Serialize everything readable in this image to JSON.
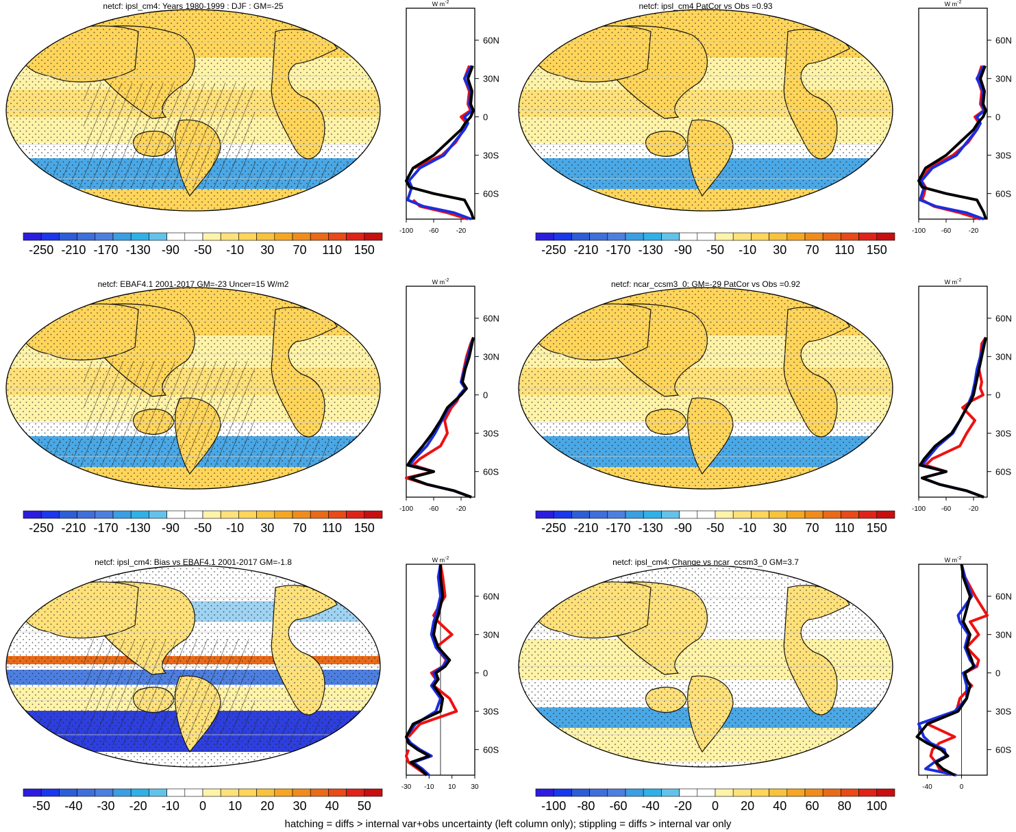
{
  "footer": "hatching = diffs > internal var+obs uncertainty (left column only); stippling = diffs > internal var only",
  "colors": {
    "palette": [
      "#2b1de0",
      "#1a37ec",
      "#2d5ed8",
      "#3f6fdb",
      "#4d7fe0",
      "#3a9fe3",
      "#2fb1e8",
      "#63c2ea",
      "#ffffff",
      "#ffffff",
      "#fff3a8",
      "#ffe17a",
      "#ffd55a",
      "#f7c23c",
      "#f5a623",
      "#f08c1c",
      "#ea6a17",
      "#e84a18",
      "#e02318",
      "#c80f0f"
    ],
    "ocean_fill": "#fff3a8",
    "land_fill": "#ffd55a",
    "southern_band": "#4aa8e6",
    "hatch": "#222222",
    "obs_line": "#000000",
    "model_line": "#1a2de0",
    "other_line": "#ee1111"
  },
  "panels": [
    {
      "title": "netcf: ipsl_cm4: Years 1980-1999 : DJF : GM=-25",
      "colorbar_labels": [
        "-250",
        "-210",
        "-170",
        "-130",
        "-90",
        "-50",
        "-10",
        "30",
        "70",
        "110",
        "150"
      ],
      "profile_unit": "W m",
      "profile_unit_sup": "-2",
      "profile_xticks": [
        "-100",
        "-60",
        "-20"
      ],
      "profile_yticks": [
        "60N",
        "30N",
        "0",
        "30S",
        "60S"
      ],
      "style": "mean"
    },
    {
      "title": "netcf: ipsl_cm4 PatCor vs Obs =0.93",
      "colorbar_labels": [
        "-250",
        "-210",
        "-170",
        "-130",
        "-90",
        "-50",
        "-10",
        "30",
        "70",
        "110",
        "150"
      ],
      "profile_unit": "W m",
      "profile_unit_sup": "-2",
      "profile_xticks": [
        "-100",
        "-60",
        "-20"
      ],
      "profile_yticks": [
        "60N",
        "30N",
        "0",
        "30S",
        "60S"
      ],
      "style": "mean"
    },
    {
      "title": "netcf: EBAF4.1 2001-2017 GM=-23 Uncer=15 W/m2",
      "colorbar_labels": [
        "-250",
        "-210",
        "-170",
        "-130",
        "-90",
        "-50",
        "-10",
        "30",
        "70",
        "110",
        "150"
      ],
      "profile_unit": "W m",
      "profile_unit_sup": "-2",
      "profile_xticks": [
        "-100",
        "-60",
        "-20"
      ],
      "profile_yticks": [
        "60N",
        "30N",
        "0",
        "30S",
        "60S"
      ],
      "style": "mean"
    },
    {
      "title": "netcf: ncar_ccsm3_0: GM=-29 PatCor vs Obs =0.92",
      "colorbar_labels": [
        "-250",
        "-210",
        "-170",
        "-130",
        "-90",
        "-50",
        "-10",
        "30",
        "70",
        "110",
        "150"
      ],
      "profile_unit": "W m",
      "profile_unit_sup": "-2",
      "profile_xticks": [
        "-100",
        "-60",
        "-20"
      ],
      "profile_yticks": [
        "60N",
        "30N",
        "0",
        "30S",
        "60S"
      ],
      "style": "mean"
    },
    {
      "title": "netcf: ipsl_cm4: Bias vs EBAF4.1 2001-2017 GM=-1.8",
      "colorbar_labels": [
        "-50",
        "-40",
        "-30",
        "-20",
        "-10",
        "0",
        "10",
        "20",
        "30",
        "40",
        "50"
      ],
      "profile_unit": "W m",
      "profile_unit_sup": "-2",
      "profile_xticks": [
        "-30",
        "-10",
        "10",
        "30"
      ],
      "profile_yticks": [
        "60N",
        "30N",
        "0",
        "30S",
        "60S"
      ],
      "style": "bias"
    },
    {
      "title": "netcf: ipsl_cm4: Change vs ncar_ccsm3_0 GM=3.7",
      "colorbar_labels": [
        "-100",
        "-80",
        "-60",
        "-40",
        "-20",
        "0",
        "20",
        "40",
        "60",
        "80",
        "100"
      ],
      "profile_unit": "W m",
      "profile_unit_sup": "-2",
      "profile_xticks": [
        "-40",
        "0"
      ],
      "profile_yticks": [
        "60N",
        "30N",
        "0",
        "30S",
        "60S"
      ],
      "style": "change"
    }
  ],
  "chart_data": [
    {
      "type": "heatmap",
      "title": "netcf: ipsl_cm4: Years 1980-1999 : DJF : GM=-25",
      "colorbar_ticks": [
        -250,
        -210,
        -170,
        -130,
        -90,
        -50,
        -10,
        30,
        70,
        110,
        150
      ],
      "profile": {
        "type": "line",
        "lat": [
          85,
          75,
          60,
          45,
          40,
          30,
          20,
          10,
          5,
          0,
          -5,
          -10,
          -20,
          -30,
          -40,
          -50,
          -55,
          -60,
          -65,
          -70,
          -75,
          -80
        ],
        "series": [
          {
            "values": [
              null,
              null,
              null,
              null,
              -8,
              -15,
              -8,
              -10,
              -6,
              -20,
              -12,
              -16,
              -28,
              -48,
              -88,
              null,
              null,
              null,
              -90,
              -80,
              -40,
              -10
            ]
          },
          {
            "values": [
              null,
              null,
              null,
              null,
              -5,
              -15,
              -6,
              -8,
              -4,
              -15,
              -10,
              -15,
              -30,
              -45,
              -80,
              -96,
              -92,
              -95,
              -98,
              -75,
              -30,
              -5
            ]
          },
          {
            "values": [
              null,
              null,
              null,
              null,
              -3,
              -10,
              -4,
              -6,
              -2,
              -6,
              -14,
              -20,
              -40,
              -60,
              -90,
              -100,
              -95,
              -60,
              -15,
              -10,
              -5,
              -2
            ]
          }
        ],
        "xlim": [
          -100,
          0
        ]
      }
    },
    {
      "type": "heatmap",
      "title": "netcf: ipsl_cm4 PatCor vs Obs =0.93",
      "colorbar_ticks": [
        -250,
        -210,
        -170,
        -130,
        -90,
        -50,
        -10,
        30,
        70,
        110,
        150
      ],
      "profile": {
        "type": "line",
        "lat": [
          85,
          75,
          60,
          45,
          40,
          30,
          20,
          10,
          5,
          0,
          -5,
          -10,
          -20,
          -30,
          -40,
          -50,
          -55,
          -60,
          -65,
          -70,
          -75,
          -80
        ],
        "series": [
          {
            "values": [
              null,
              null,
              null,
              null,
              -8,
              -14,
              -8,
              -10,
              -5,
              -18,
              -12,
              -15,
              -28,
              -50,
              -85,
              -96,
              -90,
              -92,
              -95,
              -78,
              -40,
              -10
            ]
          },
          {
            "values": [
              null,
              null,
              null,
              null,
              -5,
              -15,
              -6,
              -8,
              -4,
              -15,
              -10,
              -15,
              -30,
              -45,
              -80,
              -96,
              -92,
              -95,
              -98,
              -75,
              -30,
              -5
            ]
          },
          {
            "values": [
              null,
              null,
              null,
              null,
              -3,
              -10,
              -4,
              -6,
              -2,
              -6,
              -14,
              -20,
              -40,
              -60,
              -90,
              -100,
              -95,
              -60,
              -15,
              -10,
              -5,
              -2
            ]
          }
        ],
        "xlim": [
          -100,
          0
        ]
      }
    },
    {
      "type": "heatmap",
      "title": "netcf: EBAF4.1 2001-2017 GM=-23 Uncer=15 W/m2",
      "colorbar_ticks": [
        -250,
        -210,
        -170,
        -130,
        -90,
        -50,
        -10,
        30,
        70,
        110,
        150
      ],
      "profile": {
        "type": "line",
        "lat": [
          85,
          75,
          60,
          45,
          40,
          30,
          20,
          10,
          5,
          0,
          -5,
          -10,
          -20,
          -30,
          -40,
          -50,
          -55,
          -60,
          -65,
          -70,
          -75,
          -80
        ],
        "series": [
          {
            "values": [
              null,
              null,
              null,
              -2,
              -6,
              -12,
              -16,
              -20,
              -14,
              -22,
              -26,
              -34,
              -44,
              -40,
              -50,
              -80,
              -90,
              -60,
              -100,
              -70,
              -30,
              -5
            ]
          },
          {
            "values": [
              null,
              null,
              null,
              -2,
              -5,
              -10,
              -15,
              -20,
              -14,
              -22,
              -28,
              -38,
              -48,
              -58,
              -70,
              -88,
              -95,
              -60,
              -95,
              -70,
              -30,
              -5
            ]
          },
          {
            "values": [
              null,
              null,
              null,
              -2,
              -4,
              -8,
              -14,
              -18,
              -12,
              -20,
              -30,
              -40,
              -50,
              -62,
              -76,
              -92,
              -98,
              -60,
              -95,
              -70,
              -30,
              -5
            ]
          }
        ],
        "xlim": [
          -100,
          0
        ]
      }
    },
    {
      "type": "heatmap",
      "title": "netcf: ncar_ccsm3_0: GM=-29 PatCor vs Obs =0.92",
      "colorbar_ticks": [
        -250,
        -210,
        -170,
        -130,
        -90,
        -50,
        -10,
        30,
        70,
        110,
        150
      ],
      "profile": {
        "type": "line",
        "lat": [
          85,
          75,
          60,
          45,
          40,
          30,
          20,
          10,
          5,
          0,
          -5,
          -10,
          -20,
          -30,
          -40,
          -50,
          -55,
          -60,
          -65,
          -70,
          -75,
          -80
        ],
        "series": [
          {
            "values": [
              null,
              null,
              null,
              -2,
              -8,
              -10,
              -12,
              -8,
              -10,
              -6,
              -24,
              -36,
              -18,
              -30,
              -40,
              -80,
              -90,
              -60,
              -95,
              -70,
              -30,
              -5
            ]
          },
          {
            "values": [
              null,
              null,
              null,
              -2,
              -5,
              -10,
              -15,
              -18,
              -20,
              -22,
              -26,
              -30,
              -40,
              -50,
              -72,
              -88,
              -95,
              -60,
              -95,
              -70,
              -30,
              -5
            ]
          },
          {
            "values": [
              null,
              null,
              null,
              -2,
              -4,
              -8,
              -12,
              -16,
              -18,
              -20,
              -24,
              -30,
              -40,
              -52,
              -76,
              -92,
              -98,
              -60,
              -95,
              -70,
              -30,
              -5
            ]
          }
        ],
        "xlim": [
          -100,
          0
        ]
      }
    },
    {
      "type": "heatmap",
      "title": "netcf: ipsl_cm4: Bias vs EBAF4.1 2001-2017 GM=-1.8",
      "colorbar_ticks": [
        -50,
        -40,
        -30,
        -20,
        -10,
        0,
        10,
        20,
        30,
        40,
        50
      ],
      "profile": {
        "type": "line",
        "lat": [
          85,
          75,
          60,
          45,
          40,
          30,
          20,
          10,
          5,
          0,
          -5,
          -10,
          -20,
          -30,
          -40,
          -50,
          -55,
          -60,
          -65,
          -70,
          -75,
          -80
        ],
        "series": [
          {
            "values": [
              0,
              2,
              4,
              -6,
              -2,
              10,
              -4,
              5,
              2,
              -8,
              -4,
              -6,
              8,
              14,
              -18,
              -28,
              null,
              -28,
              -30,
              -28,
              -20,
              -12
            ]
          },
          {
            "values": [
              0,
              -2,
              0,
              -4,
              -6,
              -8,
              -4,
              6,
              2,
              -6,
              -4,
              -8,
              0,
              -4,
              -22,
              -30,
              -26,
              -18,
              -8,
              -24,
              -16,
              -10
            ]
          },
          {
            "values": [
              0,
              0,
              2,
              -2,
              -4,
              -6,
              -2,
              8,
              4,
              -4,
              -2,
              -6,
              2,
              0,
              -24,
              -30,
              -28,
              -20,
              -10,
              -26,
              -18,
              -12
            ]
          }
        ],
        "xlim": [
          -30,
          30
        ]
      }
    },
    {
      "type": "heatmap",
      "title": "netcf: ipsl_cm4: Change vs ncar_ccsm3_0 GM=3.7",
      "colorbar_ticks": [
        -100,
        -80,
        -60,
        -40,
        -20,
        0,
        20,
        40,
        60,
        80,
        100
      ],
      "profile": {
        "type": "line",
        "lat": [
          85,
          75,
          60,
          45,
          40,
          30,
          20,
          10,
          5,
          0,
          -5,
          -10,
          -20,
          -30,
          -40,
          -50,
          -55,
          -60,
          -65,
          -70,
          -75,
          -80
        ],
        "series": [
          {
            "values": [
              0,
              4,
              16,
              30,
              10,
              20,
              6,
              20,
              18,
              4,
              4,
              12,
              -2,
              -6,
              -40,
              -8,
              -26,
              -34,
              -36,
              -30,
              -26,
              -12
            ]
          },
          {
            "values": [
              0,
              4,
              12,
              -4,
              -2,
              8,
              4,
              10,
              16,
              2,
              4,
              6,
              6,
              -8,
              -50,
              -44,
              -36,
              -20,
              -18,
              -32,
              -42,
              -6
            ]
          },
          {
            "values": [
              0,
              2,
              10,
              4,
              2,
              10,
              6,
              12,
              14,
              4,
              6,
              10,
              6,
              -4,
              -40,
              -52,
              -40,
              -24,
              -16,
              -30,
              -22,
              -8
            ]
          }
        ],
        "xlim": [
          -50,
          30
        ]
      }
    }
  ]
}
